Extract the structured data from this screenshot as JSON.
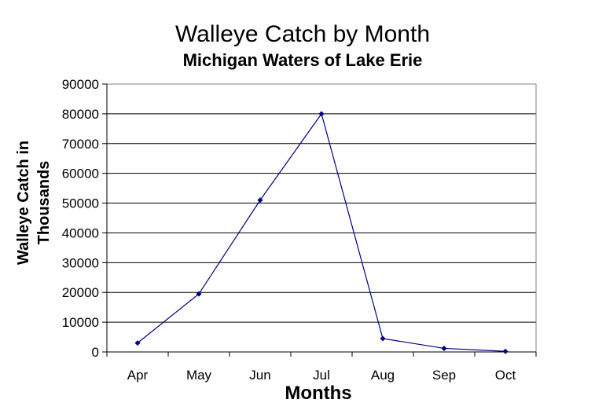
{
  "chart_data": {
    "type": "line",
    "title": "Walleye Catch by Month",
    "subtitle": "Michigan Waters of Lake Erie",
    "xlabel": "Months",
    "ylabel_lines": [
      "Walleye Catch in",
      "Thousands"
    ],
    "categories": [
      "Apr",
      "May",
      "Jun",
      "Jul",
      "Aug",
      "Sep",
      "Oct"
    ],
    "series": [
      {
        "values": [
          3000,
          19500,
          51000,
          80000,
          4500,
          1200,
          200
        ]
      }
    ],
    "ylim": [
      0,
      90000
    ],
    "yticks": [
      0,
      10000,
      20000,
      30000,
      40000,
      50000,
      60000,
      70000,
      80000,
      90000
    ],
    "grid": true,
    "legend": "none",
    "line_color": "#000080"
  }
}
